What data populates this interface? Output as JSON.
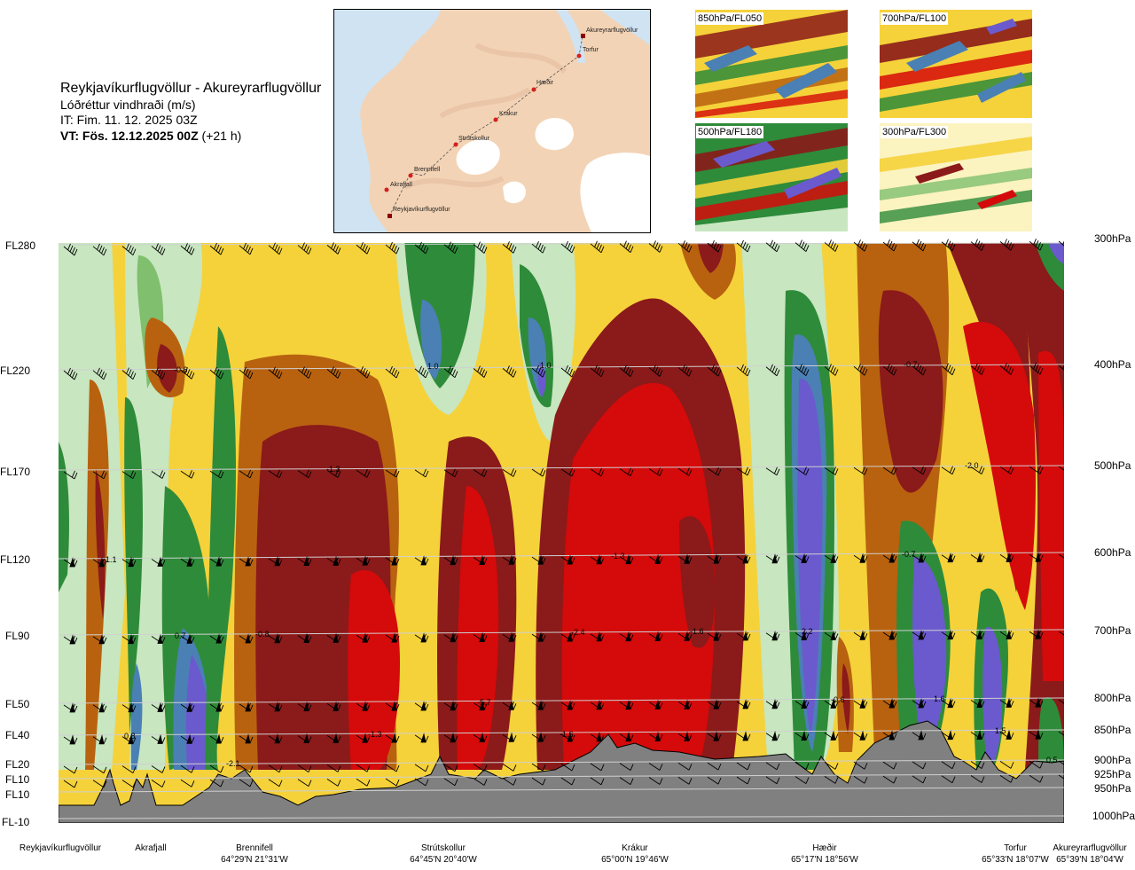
{
  "header": {
    "route": "Reykjavíkurflugvöllur - Akureyrarflugvöllur",
    "parameter": "Lóðréttur vindhraði (m/s)",
    "issue_time": "IT: Fim. 11. 12. 2025 03Z",
    "valid_time_bold": "VT: Fös. 12.12.2025 00Z",
    "valid_offset": "(+21 h)"
  },
  "map": {
    "places": [
      {
        "name": "Akureyrarflugvöllur",
        "type": "airport"
      },
      {
        "name": "Torfur",
        "type": "point"
      },
      {
        "name": "Hæðir",
        "type": "point"
      },
      {
        "name": "Krákur",
        "type": "point"
      },
      {
        "name": "Strútskollur",
        "type": "point"
      },
      {
        "name": "Brennifell",
        "type": "point"
      },
      {
        "name": "Akrafjall",
        "type": "point"
      },
      {
        "name": "Reykjavíkurflugvöllur",
        "type": "airport"
      }
    ],
    "colors": {
      "land": "#f3d3b5",
      "sea": "#cfe3f2",
      "ice": "#ffffff",
      "route": "#555555",
      "marker": "#d42020"
    }
  },
  "thumbnails": [
    {
      "label": "850hPa/FL050"
    },
    {
      "label": "700hPa/FL100"
    },
    {
      "label": "500hPa/FL180"
    },
    {
      "label": "300hPa/FL300"
    }
  ],
  "flight_levels": [
    "FL280",
    "FL220",
    "FL170",
    "FL120",
    "FL90",
    "FL50",
    "FL40",
    "FL20",
    "FL10",
    "FL10",
    "FL-10"
  ],
  "pressure_levels": [
    "300hPa",
    "400hPa",
    "500hPa",
    "600hPa",
    "700hPa",
    "800hPa",
    "850hPa",
    "900hPa",
    "925hPa",
    "950hPa",
    "1000hPa"
  ],
  "waypoints": [
    {
      "name": "Reykjavíkurflugvöllur",
      "coord": ""
    },
    {
      "name": "Akrafjall",
      "coord": ""
    },
    {
      "name": "Brennifell",
      "coord": "64°29'N 21°31'W"
    },
    {
      "name": "Strútskollur",
      "coord": "64°45'N 20°40'W"
    },
    {
      "name": "Krákur",
      "coord": "65°00'N 19°46'W"
    },
    {
      "name": "Hæðir",
      "coord": "65°17'N 18°56'W"
    },
    {
      "name": "Torfur",
      "coord": "65°33'N 18°07'W"
    },
    {
      "name": "Akureyrarflugvöllur",
      "coord": "65°39'N 18°04'W"
    }
  ],
  "contour_labels": [
    "-0.6",
    "1.0",
    "1.0",
    "-0.7",
    "-1.3",
    "-2.0",
    "-1.1",
    "-1.3",
    "-0.7",
    "0.7",
    "-0.8",
    "-2.4",
    "-1.6",
    "2.2",
    "-5.7",
    "-0.6",
    "1.6",
    "0.8",
    "-1.3",
    "-1.6",
    "1.5",
    "-2.1",
    "0.5"
  ],
  "colors": {
    "strong_down": "#d50a0a",
    "down": "#8b1a1a",
    "mod_down": "#b8620f",
    "weak_down": "#e8a92a",
    "slight_down": "#f5d23a",
    "neutral": "#fbf3c0",
    "slight_up": "#c8e6c0",
    "weak_up": "#7fbf6e",
    "mod_up": "#2e8b3a",
    "up": "#4a80b4",
    "strong_up": "#6a5acd",
    "terrain": "#808080"
  }
}
